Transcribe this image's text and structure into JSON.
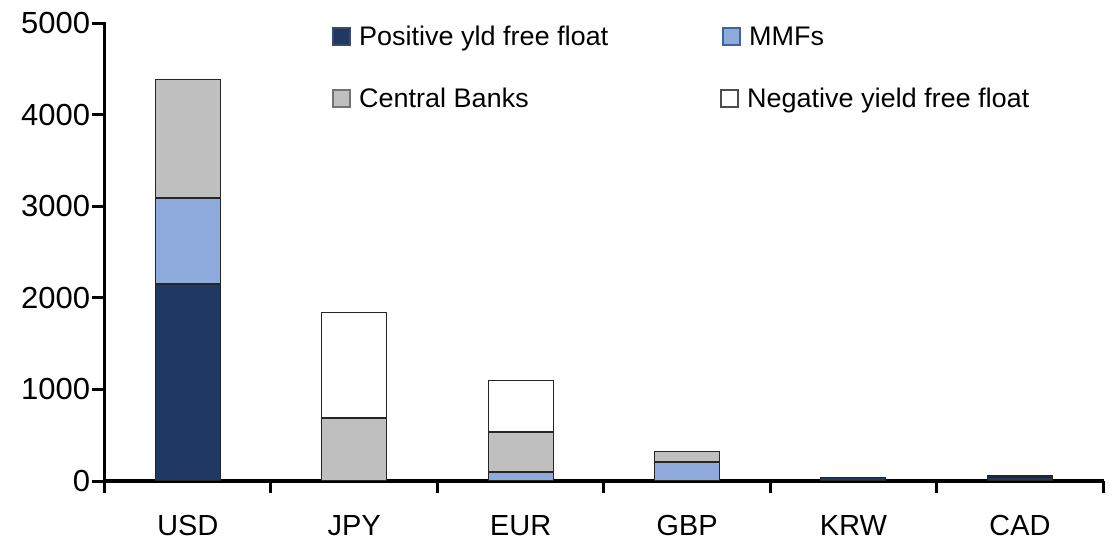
{
  "chart_data": {
    "type": "bar",
    "stacked": true,
    "title": "",
    "xlabel": "",
    "ylabel": "",
    "categories": [
      "USD",
      "JPY",
      "EUR",
      "GBP",
      "KRW",
      "CAD"
    ],
    "series": [
      {
        "name": "Positive yld free float",
        "color": "#1f3864",
        "swatch_border": "#3e4a63",
        "values": [
          2150,
          0,
          0,
          0,
          45,
          40
        ]
      },
      {
        "name": "MMFs",
        "color": "#8faadc",
        "swatch_border": "#41639c",
        "values": [
          940,
          0,
          100,
          210,
          0,
          0
        ]
      },
      {
        "name": "Central Banks",
        "color": "#bfbfbf",
        "swatch_border": "#737373",
        "values": [
          1300,
          690,
          435,
          120,
          0,
          30
        ]
      },
      {
        "name": "Negative yield free float",
        "color": "#ffffff",
        "swatch_border": "#4d4d4d",
        "values": [
          0,
          1160,
          565,
          0,
          0,
          0
        ]
      }
    ],
    "totals": {
      "USD": 4390,
      "JPY": 1850,
      "EUR": 1100,
      "GBP": 330,
      "KRW": 45,
      "CAD": 70
    },
    "ylim": [
      0,
      5000
    ],
    "yticks": [
      0,
      1000,
      2000,
      3000,
      4000,
      5000
    ],
    "grid": false,
    "legend_position": "top-inside",
    "axis_color": "#000000",
    "segment_border_color": "#262626"
  }
}
